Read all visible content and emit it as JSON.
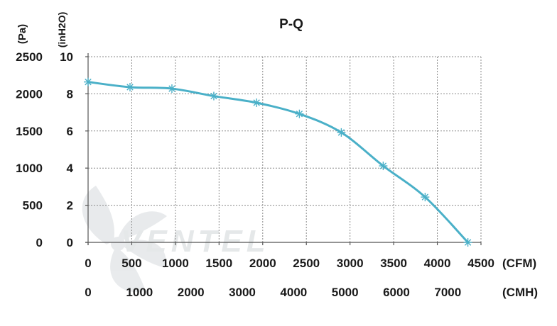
{
  "chart_data": {
    "type": "line",
    "title": "P-Q",
    "y_left_unit": "(Pa)",
    "y_right_unit": "(inH2O)",
    "y_pa_ticks": [
      "2500",
      "2000",
      "1500",
      "1000",
      "500",
      "0"
    ],
    "y_inh2o_ticks": [
      "10",
      "8",
      "6",
      "4",
      "2",
      "0"
    ],
    "x_cfm_ticks": [
      "0",
      "500",
      "1000",
      "1500",
      "2000",
      "2500",
      "3000",
      "3500",
      "4000",
      "4500"
    ],
    "x_cfm_unit": "(CFM)",
    "x_cmh_ticks": [
      "0",
      "1000",
      "2000",
      "3000",
      "4000",
      "5000",
      "6000",
      "7000"
    ],
    "x_cmh_unit": "(CMH)",
    "xlim_cfm": [
      0,
      4500
    ],
    "ylim_pa": [
      0,
      2500
    ],
    "grid": true,
    "series": [
      {
        "x": [
          0,
          480,
          960,
          1440,
          1930,
          2420,
          2900,
          3380,
          3860,
          4350
        ],
        "y": [
          2160,
          2090,
          2070,
          1970,
          1880,
          1730,
          1480,
          1030,
          610,
          0
        ],
        "color": "#4ab0c8"
      }
    ],
    "watermark": "VENTEL"
  }
}
